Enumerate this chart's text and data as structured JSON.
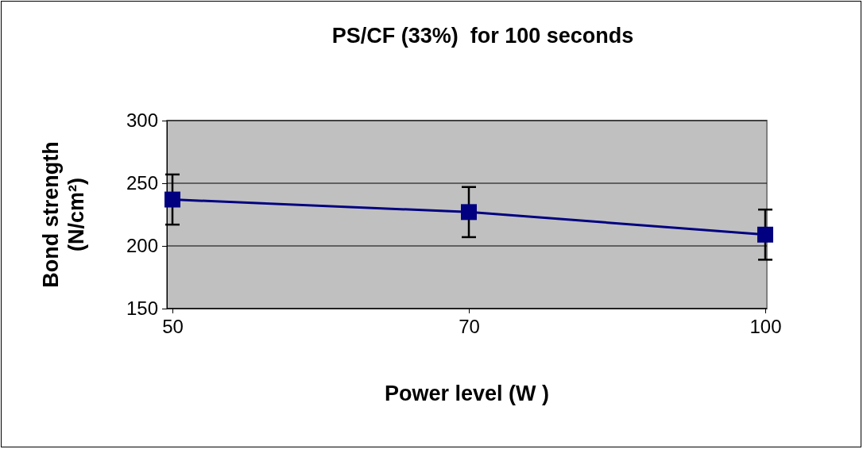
{
  "chart_data": {
    "type": "line",
    "title": "PS/CF (33%)  for 100 seconds",
    "xlabel": "Power level (W )",
    "ylabel": "Bond strength (N/cm²)",
    "categories": [
      "50",
      "70",
      "100"
    ],
    "series": [
      {
        "color": "#000080",
        "values": [
          237,
          227,
          209
        ],
        "errors": [
          20,
          20,
          20
        ]
      }
    ],
    "ylim": [
      150,
      300
    ],
    "yticks": [
      150,
      200,
      250,
      300
    ],
    "grid": "y",
    "marker": "square",
    "line_style": "solid"
  }
}
